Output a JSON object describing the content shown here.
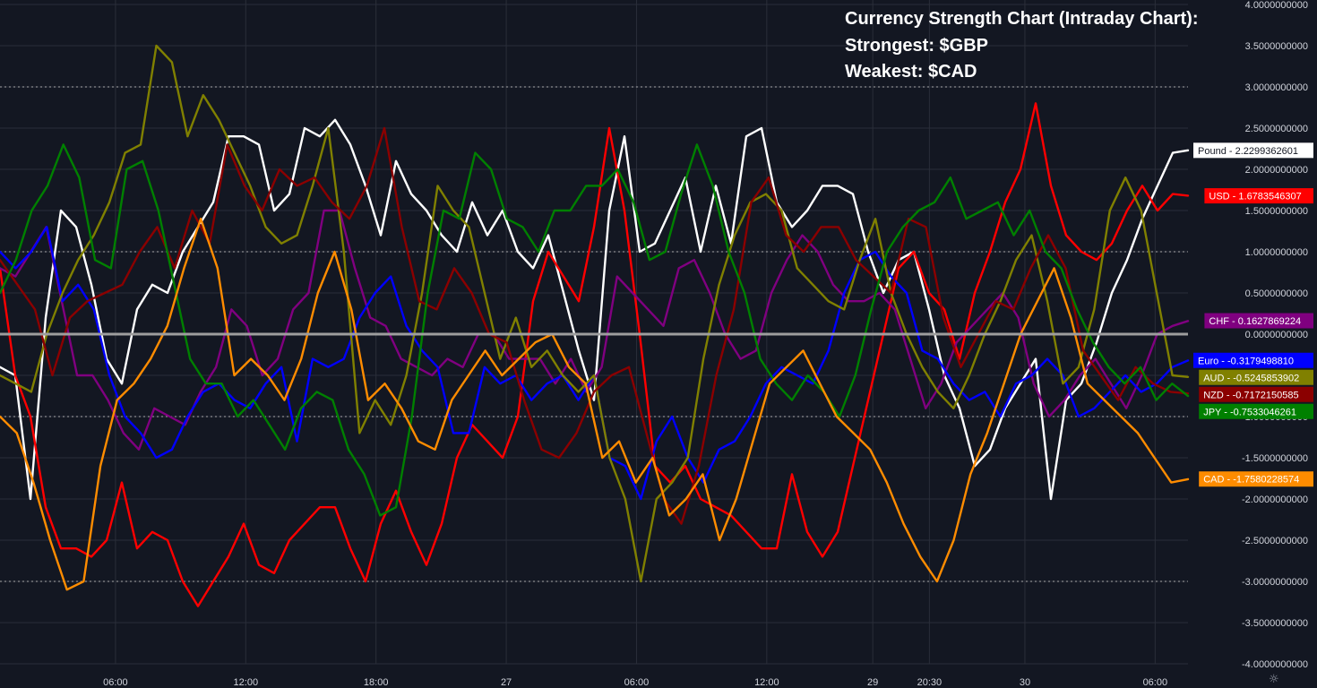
{
  "title_lines": [
    "Currency Strength Chart (Intraday Chart):",
    "Strongest: $GBP",
    "Weakest: $CAD"
  ],
  "colors": {
    "background": "#131722",
    "grid": "#2a2e39",
    "axis_text": "#d1d4dc",
    "zero_line": "#9e9e9e"
  },
  "settings_icon": "gear-icon",
  "chart_data": {
    "type": "line",
    "ylim": [
      -4.0,
      4.0
    ],
    "y_ticks": [
      "4.0000000000",
      "3.5000000000",
      "3.0000000000",
      "2.5000000000",
      "2.0000000000",
      "1.5000000000",
      "1.0000000000",
      "0.5000000000",
      "0.0000000000",
      "-0.5000000000",
      "-1.0000000000",
      "-1.5000000000",
      "-2.0000000000",
      "-2.5000000000",
      "-3.0000000000",
      "-3.5000000000",
      "-4.0000000000"
    ],
    "x_ticks": [
      {
        "label": "06:00",
        "t": 0.0877
      },
      {
        "label": "12:00",
        "t": 0.1866
      },
      {
        "label": "18:00",
        "t": 0.2855
      },
      {
        "label": "27",
        "t": 0.3844
      },
      {
        "label": "06:00",
        "t": 0.4833
      },
      {
        "label": "12:00",
        "t": 0.5822
      },
      {
        "label": "29",
        "t": 0.6627
      },
      {
        "label": "20:30",
        "t": 0.7057
      },
      {
        "label": "30",
        "t": 0.7782
      },
      {
        "label": "06:00",
        "t": 0.8771
      }
    ],
    "dotted_levels": [
      3.0,
      1.0,
      -1.0,
      -3.0
    ],
    "zero_line": 0.0,
    "series": [
      {
        "name": "Pound",
        "label": "Pound",
        "value_text": "2.2299362601",
        "color": "#ffffff",
        "text_color": "#131722",
        "value": 2.2299362601,
        "values": [
          -0.4,
          -0.5,
          -2.0,
          0.2,
          1.5,
          1.3,
          0.6,
          -0.3,
          -0.6,
          0.3,
          0.6,
          0.5,
          1.0,
          1.3,
          1.6,
          2.4,
          2.4,
          2.3,
          1.5,
          1.7,
          2.5,
          2.4,
          2.6,
          2.3,
          1.8,
          1.2,
          2.1,
          1.7,
          1.5,
          1.2,
          1.0,
          1.6,
          1.2,
          1.5,
          1.0,
          0.8,
          1.2,
          0.5,
          -0.2,
          -0.8,
          1.5,
          2.4,
          1.0,
          1.1,
          1.5,
          1.9,
          1.0,
          1.8,
          1.1,
          2.4,
          2.5,
          1.6,
          1.3,
          1.5,
          1.8,
          1.8,
          1.7,
          1.0,
          0.5,
          0.9,
          1.0,
          0.3,
          -0.5,
          -0.9,
          -1.6,
          -1.4,
          -0.9,
          -0.6,
          -0.3,
          -2.0,
          -0.8,
          -0.6,
          -0.1,
          0.5,
          0.9,
          1.4,
          1.8,
          2.2,
          2.23
        ]
      },
      {
        "name": "USD",
        "label": "USD",
        "value_text": "1.6783546307",
        "color": "#ff0000",
        "text_color": "#ffffff",
        "value": 1.6783546307,
        "values": [
          0.8,
          -0.5,
          -1.0,
          -2.1,
          -2.6,
          -2.6,
          -2.7,
          -2.5,
          -1.8,
          -2.6,
          -2.4,
          -2.5,
          -3.0,
          -3.3,
          -3.0,
          -2.7,
          -2.3,
          -2.8,
          -2.9,
          -2.5,
          -2.3,
          -2.1,
          -2.1,
          -2.6,
          -3.0,
          -2.3,
          -1.9,
          -2.4,
          -2.8,
          -2.3,
          -1.5,
          -1.1,
          -1.3,
          -1.5,
          -1.0,
          0.4,
          1.0,
          0.7,
          0.4,
          1.3,
          2.5,
          1.5,
          0.0,
          -1.6,
          -1.8,
          -1.6,
          -2.0,
          -2.1,
          -2.2,
          -2.4,
          -2.6,
          -2.6,
          -1.7,
          -2.4,
          -2.7,
          -2.4,
          -1.6,
          -0.8,
          0.0,
          0.8,
          1.0,
          0.5,
          0.3,
          -0.3,
          0.5,
          1.0,
          1.6,
          2.0,
          2.8,
          1.8,
          1.2,
          1.0,
          0.9,
          1.1,
          1.5,
          1.8,
          1.5,
          1.7,
          1.68
        ]
      },
      {
        "name": "CHF",
        "label": "CHF",
        "value_text": "0.1627869224",
        "color": "#800080",
        "text_color": "#ffffff",
        "value": 0.1627869224,
        "values": [
          0.8,
          0.7,
          1.0,
          1.3,
          0.4,
          -0.5,
          -0.5,
          -0.8,
          -1.2,
          -1.4,
          -0.9,
          -1.0,
          -1.1,
          -0.7,
          -0.4,
          0.3,
          0.1,
          -0.5,
          -0.3,
          0.3,
          0.5,
          1.5,
          1.5,
          0.8,
          0.2,
          0.1,
          -0.3,
          -0.4,
          -0.5,
          -0.3,
          -0.4,
          0.0,
          0.0,
          -0.3,
          -0.3,
          -0.3,
          -0.6,
          -0.3,
          -0.7,
          -0.4,
          0.7,
          0.5,
          0.3,
          0.1,
          0.8,
          0.9,
          0.5,
          0.0,
          -0.3,
          -0.2,
          0.5,
          0.9,
          1.2,
          1.0,
          0.6,
          0.4,
          0.4,
          0.5,
          0.3,
          -0.3,
          -0.9,
          -0.6,
          -0.1,
          0.1,
          0.3,
          0.5,
          0.2,
          -0.6,
          -1.0,
          -0.8,
          -0.5,
          -0.3,
          -0.6,
          -0.9,
          -0.5,
          0.0,
          0.1,
          0.16
        ]
      },
      {
        "name": "Euro",
        "label": "Euro",
        "value_text": "-0.3179498810",
        "color": "#0000ff",
        "text_color": "#ffffff",
        "value": -0.317949881,
        "values": [
          1.0,
          0.8,
          1.0,
          1.3,
          0.4,
          0.6,
          0.3,
          -0.5,
          -1.0,
          -1.2,
          -1.5,
          -1.4,
          -1.0,
          -0.7,
          -0.6,
          -0.8,
          -0.9,
          -0.6,
          -0.4,
          -1.3,
          -0.3,
          -0.4,
          -0.3,
          0.2,
          0.5,
          0.7,
          0.1,
          -0.2,
          -0.4,
          -1.2,
          -1.2,
          -0.4,
          -0.6,
          -0.5,
          -0.8,
          -0.6,
          -0.5,
          -0.8,
          -0.5,
          -1.5,
          -1.6,
          -2.0,
          -1.3,
          -1.0,
          -1.5,
          -1.8,
          -1.4,
          -1.3,
          -1.0,
          -0.6,
          -0.4,
          -0.5,
          -0.6,
          -0.2,
          0.5,
          0.9,
          1.0,
          0.7,
          0.5,
          -0.2,
          -0.3,
          -0.6,
          -0.8,
          -0.7,
          -1.0,
          -0.6,
          -0.5,
          -0.3,
          -0.5,
          -1.0,
          -0.9,
          -0.7,
          -0.5,
          -0.7,
          -0.6,
          -0.4,
          -0.32
        ]
      },
      {
        "name": "AUD",
        "label": "AUD",
        "value_text": "-0.5245853902",
        "color": "#808000",
        "text_color": "#ffffff",
        "value": -0.5245853902,
        "values": [
          -0.5,
          -0.6,
          -0.7,
          0.0,
          0.5,
          0.9,
          1.2,
          1.6,
          2.2,
          2.3,
          3.5,
          3.3,
          2.4,
          2.9,
          2.6,
          2.2,
          1.8,
          1.3,
          1.1,
          1.2,
          1.8,
          2.5,
          1.0,
          -1.2,
          -0.8,
          -1.1,
          -0.5,
          0.5,
          1.8,
          1.5,
          1.3,
          0.5,
          -0.3,
          0.2,
          -0.4,
          -0.2,
          -0.5,
          -0.7,
          -0.5,
          -1.5,
          -2.0,
          -3.0,
          -2.0,
          -1.8,
          -1.5,
          -0.3,
          0.6,
          1.2,
          1.6,
          1.7,
          1.5,
          0.8,
          0.6,
          0.4,
          0.3,
          0.9,
          1.4,
          0.5,
          0.0,
          -0.4,
          -0.7,
          -0.9,
          -0.5,
          0.0,
          0.4,
          0.9,
          1.2,
          0.4,
          -0.6,
          -0.4,
          0.3,
          1.5,
          1.9,
          1.5,
          0.5,
          -0.5,
          -0.52
        ]
      },
      {
        "name": "NZD",
        "label": "NZD",
        "value_text": "-0.7172150585",
        "color": "#8b0000",
        "text_color": "#ffffff",
        "value": -0.7172150585,
        "values": [
          0.9,
          0.6,
          0.3,
          -0.5,
          0.2,
          0.4,
          0.5,
          0.6,
          1.0,
          1.3,
          0.8,
          1.5,
          1.1,
          2.3,
          1.8,
          1.5,
          2.0,
          1.8,
          1.9,
          1.6,
          1.4,
          1.8,
          2.5,
          1.3,
          0.4,
          0.3,
          0.8,
          0.5,
          0.0,
          -0.1,
          -0.8,
          -1.4,
          -1.5,
          -1.2,
          -0.7,
          -0.5,
          -0.4,
          -1.2,
          -2.0,
          -2.3,
          -1.6,
          -0.5,
          0.3,
          1.6,
          1.9,
          1.2,
          1.0,
          1.3,
          1.3,
          0.9,
          0.7,
          0.5,
          1.4,
          1.3,
          0.2,
          -0.4,
          0.0,
          0.4,
          0.3,
          0.8,
          1.2,
          0.8,
          -0.2,
          -0.5,
          -0.8,
          -0.4,
          -0.6,
          -0.7,
          -0.72
        ]
      },
      {
        "name": "JPY",
        "label": "JPY",
        "value_text": "-0.7533046261",
        "color": "#008000",
        "text_color": "#ffffff",
        "value": -0.7533046261,
        "values": [
          0.5,
          0.9,
          1.5,
          1.8,
          2.3,
          1.9,
          0.9,
          0.8,
          2.0,
          2.1,
          1.5,
          0.6,
          -0.3,
          -0.6,
          -0.6,
          -1.0,
          -0.8,
          -1.1,
          -1.4,
          -0.9,
          -0.7,
          -0.8,
          -1.4,
          -1.7,
          -2.2,
          -2.1,
          -1.0,
          0.5,
          1.5,
          1.4,
          2.2,
          2.0,
          1.4,
          1.3,
          1.0,
          1.5,
          1.5,
          1.8,
          1.8,
          2.0,
          1.6,
          0.9,
          1.0,
          1.7,
          2.3,
          1.8,
          1.0,
          0.5,
          -0.3,
          -0.6,
          -0.8,
          -0.5,
          -0.7,
          -1.0,
          -0.5,
          0.3,
          1.0,
          1.3,
          1.5,
          1.6,
          1.9,
          1.4,
          1.5,
          1.6,
          1.2,
          1.5,
          1.0,
          0.8,
          0.3,
          -0.1,
          -0.4,
          -0.6,
          -0.4,
          -0.8,
          -0.6,
          -0.75
        ]
      },
      {
        "name": "CAD",
        "label": "CAD",
        "value_text": "-1.7580228574",
        "color": "#ff8c00",
        "text_color": "#ffffff",
        "value": -1.7580228574,
        "values": [
          -1.0,
          -1.2,
          -1.8,
          -2.5,
          -3.1,
          -3.0,
          -1.6,
          -0.8,
          -0.6,
          -0.3,
          0.1,
          0.8,
          1.4,
          0.8,
          -0.5,
          -0.3,
          -0.5,
          -0.8,
          -0.3,
          0.5,
          1.0,
          0.3,
          -0.8,
          -0.6,
          -0.9,
          -1.3,
          -1.4,
          -0.8,
          -0.5,
          -0.2,
          -0.5,
          -0.3,
          -0.1,
          0.0,
          -0.4,
          -0.6,
          -1.5,
          -1.3,
          -1.8,
          -1.5,
          -2.2,
          -2.0,
          -1.7,
          -2.5,
          -2.0,
          -1.3,
          -0.6,
          -0.4,
          -0.2,
          -0.6,
          -1.0,
          -1.2,
          -1.4,
          -1.8,
          -2.3,
          -2.7,
          -3.0,
          -2.5,
          -1.7,
          -1.2,
          -0.6,
          0.0,
          0.4,
          0.8,
          0.2,
          -0.6,
          -0.8,
          -1.0,
          -1.2,
          -1.5,
          -1.8,
          -1.76
        ]
      }
    ]
  }
}
